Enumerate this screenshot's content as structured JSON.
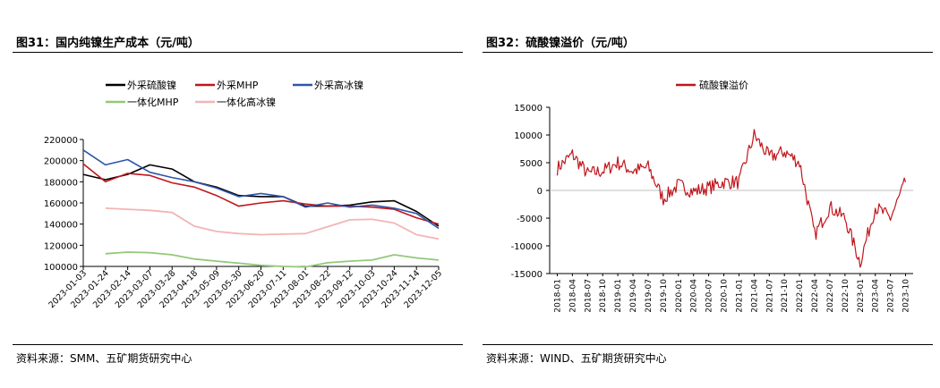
{
  "left": {
    "title": "图31：国内纯镍生产成本（元/吨）",
    "source": "资料来源：SMM、五矿期货研究中心",
    "chart_data": {
      "type": "line",
      "title": "",
      "xlabel": "",
      "ylabel": "",
      "ylim": [
        100000,
        220000
      ],
      "yticks": [
        "220000",
        "200000",
        "180000",
        "160000",
        "140000",
        "120000",
        "100000"
      ],
      "ytick_values": [
        220000,
        200000,
        180000,
        160000,
        140000,
        120000,
        100000
      ],
      "x": [
        "2023-01-03",
        "2023-01-24",
        "2023-02-14",
        "2023-03-07",
        "2023-03-28",
        "2023-04-18",
        "2023-05-09",
        "2023-05-30",
        "2023-06-20",
        "2023-07-11",
        "2023-08-01",
        "2023-08-22",
        "2023-09-12",
        "2023-10-03",
        "2023-10-24",
        "2023-11-14",
        "2023-12-05"
      ],
      "legend_position": "top",
      "series": [
        {
          "name": "外采硫酸镍",
          "color": "#000000",
          "values": [
            187000,
            182000,
            187000,
            196000,
            192000,
            180000,
            175000,
            167000,
            166000,
            166000,
            157000,
            157000,
            158000,
            161000,
            162000,
            152000,
            138000
          ]
        },
        {
          "name": "外采MHP",
          "color": "#c0161c",
          "values": [
            197000,
            180000,
            188000,
            186000,
            179000,
            175000,
            167000,
            157000,
            160000,
            162000,
            159000,
            157000,
            157000,
            156000,
            154000,
            146000,
            140000
          ]
        },
        {
          "name": "外采高冰镍",
          "color": "#2e56a8",
          "values": [
            210000,
            196000,
            201000,
            189000,
            184000,
            180000,
            174000,
            166000,
            169000,
            166000,
            156000,
            160000,
            156000,
            158000,
            155000,
            150000,
            136000
          ]
        },
        {
          "name": "一体化MHP",
          "color": "#92c97a",
          "values": [
            null,
            112000,
            113500,
            113000,
            111000,
            107000,
            105000,
            103000,
            101000,
            100000,
            99500,
            103500,
            105000,
            106000,
            111000,
            108000,
            106000
          ]
        },
        {
          "name": "一体化高冰镍",
          "color": "#f2b5b5",
          "values": [
            null,
            155000,
            154000,
            153000,
            151000,
            138000,
            133000,
            131000,
            130000,
            130500,
            131000,
            137500,
            144000,
            144500,
            141000,
            130000,
            126000
          ]
        }
      ]
    }
  },
  "right": {
    "title": "图32：硫酸镍溢价（元/吨）",
    "source": "资料来源：WIND、五矿期货研究中心",
    "chart_data": {
      "type": "line",
      "title": "",
      "xlabel": "",
      "ylabel": "",
      "ylim": [
        -15000,
        15000
      ],
      "yticks": [
        "15000",
        "10000",
        "5000",
        "0",
        "-5000",
        "-10000",
        "-15000"
      ],
      "ytick_values": [
        15000,
        10000,
        5000,
        0,
        -5000,
        -10000,
        -15000
      ],
      "x": [
        "2018-01",
        "2018-04",
        "2018-07",
        "2018-10",
        "2019-01",
        "2019-04",
        "2019-07",
        "2019-10",
        "2020-01",
        "2020-04",
        "2020-07",
        "2020-10",
        "2021-01",
        "2021-04",
        "2021-07",
        "2021-10",
        "2022-01",
        "2022-04",
        "2022-07",
        "2022-10",
        "2023-01",
        "2023-04",
        "2023-07",
        "2023-10"
      ],
      "legend_position": "top",
      "series": [
        {
          "name": "硫酸镍溢价",
          "color": "#c0161c",
          "values": [
            4000,
            6500,
            3000,
            3500,
            5000,
            3500,
            4200,
            -1500,
            1000,
            -200,
            500,
            1500,
            1500,
            10000,
            6000,
            7000,
            5000,
            -8000,
            -3000,
            -5000,
            -13000,
            -3000,
            -5000,
            1500
          ]
        }
      ]
    }
  }
}
